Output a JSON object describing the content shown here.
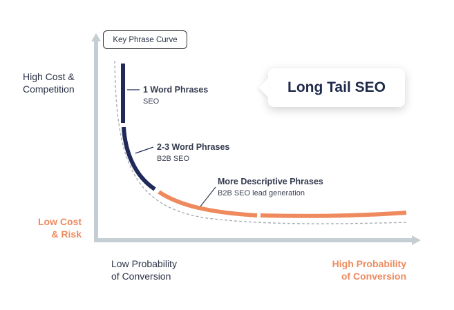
{
  "curve_tag": "Key Phrase Curve",
  "title": "Long Tail SEO",
  "y_axis": {
    "top_label": [
      "High Cost &",
      "Competition"
    ],
    "bottom_label": [
      "Low Cost",
      "& Risk"
    ]
  },
  "x_axis": {
    "left_label": [
      "Low Probability",
      "of Conversion"
    ],
    "right_label": [
      "High Probability",
      "of Conversion"
    ]
  },
  "phrases": [
    {
      "title": "1 Word Phrases",
      "subtitle": "SEO"
    },
    {
      "title": "2-3 Word Phrases",
      "subtitle": "B2B SEO"
    },
    {
      "title": "More Descriptive Phrases",
      "subtitle": "B2B SEO lead generation"
    }
  ],
  "colors": {
    "navy": "#1f2a5a",
    "orange": "#ee8a5e",
    "axis": "#c5ced3",
    "dashed": "#a6adb4",
    "text": "#2a3246"
  }
}
